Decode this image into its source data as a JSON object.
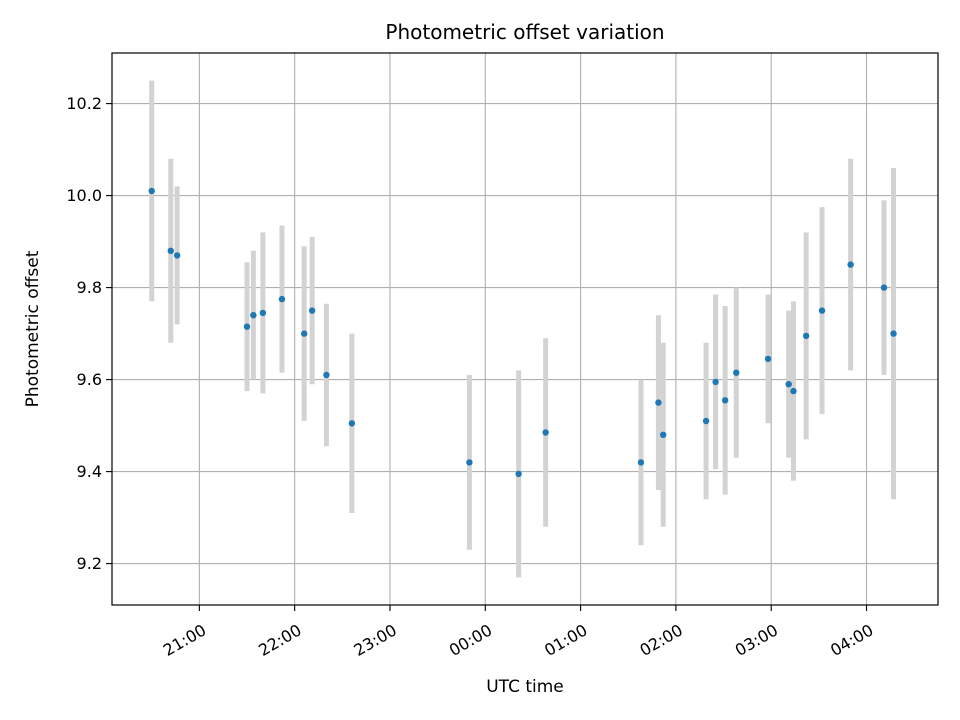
{
  "chart_data": {
    "type": "scatter",
    "title": "Photometric offset variation",
    "xlabel": "UTC time",
    "ylabel": "Photometric offset",
    "x_ticks": [
      "21:00",
      "22:00",
      "23:00",
      "00:00",
      "01:00",
      "02:00",
      "03:00",
      "04:00"
    ],
    "y_ticks": [
      "9.2",
      "9.4",
      "9.6",
      "9.8",
      "10.0",
      "10.2"
    ],
    "ylim": [
      9.11,
      10.31
    ],
    "xlim": [
      "20:05",
      "04:45"
    ],
    "grid": true,
    "colors": {
      "point": "#1f77b4",
      "errorbar": "#d3d3d3",
      "grid": "#b0b0b0"
    },
    "points": [
      {
        "t": "20:30",
        "y": 10.01,
        "err": 0.24
      },
      {
        "t": "20:42",
        "y": 9.88,
        "err": 0.2
      },
      {
        "t": "20:46",
        "y": 9.87,
        "err": 0.15
      },
      {
        "t": "21:30",
        "y": 9.715,
        "err": 0.14
      },
      {
        "t": "21:34",
        "y": 9.74,
        "err": 0.14
      },
      {
        "t": "21:40",
        "y": 9.745,
        "err": 0.175
      },
      {
        "t": "21:52",
        "y": 9.775,
        "err": 0.16
      },
      {
        "t": "22:06",
        "y": 9.7,
        "err": 0.19
      },
      {
        "t": "22:11",
        "y": 9.75,
        "err": 0.16
      },
      {
        "t": "22:20",
        "y": 9.61,
        "err": 0.155
      },
      {
        "t": "22:36",
        "y": 9.505,
        "err": 0.195
      },
      {
        "t": "23:50",
        "y": 9.42,
        "err": 0.19
      },
      {
        "t": "00:21",
        "y": 9.395,
        "err": 0.225
      },
      {
        "t": "00:38",
        "y": 9.485,
        "err": 0.205
      },
      {
        "t": "01:38",
        "y": 9.42,
        "err": 0.18
      },
      {
        "t": "01:49",
        "y": 9.55,
        "err": 0.19
      },
      {
        "t": "01:52",
        "y": 9.48,
        "err": 0.2
      },
      {
        "t": "02:19",
        "y": 9.51,
        "err": 0.17
      },
      {
        "t": "02:25",
        "y": 9.595,
        "err": 0.19
      },
      {
        "t": "02:31",
        "y": 9.555,
        "err": 0.205
      },
      {
        "t": "02:38",
        "y": 9.615,
        "err": 0.185
      },
      {
        "t": "02:58",
        "y": 9.645,
        "err": 0.14
      },
      {
        "t": "03:11",
        "y": 9.59,
        "err": 0.16
      },
      {
        "t": "03:14",
        "y": 9.575,
        "err": 0.195
      },
      {
        "t": "03:22",
        "y": 9.695,
        "err": 0.225
      },
      {
        "t": "03:32",
        "y": 9.75,
        "err": 0.225
      },
      {
        "t": "03:50",
        "y": 9.85,
        "err": 0.23
      },
      {
        "t": "04:11",
        "y": 9.8,
        "err": 0.19
      },
      {
        "t": "04:17",
        "y": 9.7,
        "err": 0.36
      }
    ]
  }
}
